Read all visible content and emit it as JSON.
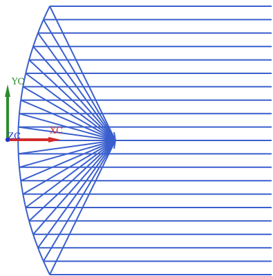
{
  "viewport": {
    "background": "#ffffff",
    "geometry_color": "#3a5fcd",
    "horizontal_line_count": 21,
    "fan_line_count": 21
  },
  "triad": {
    "x_axis": {
      "label": "XC",
      "color": "#d42a2a"
    },
    "y_axis": {
      "label": "YC",
      "color": "#2e8b2e"
    },
    "z_axis": {
      "label": "ZC",
      "color": "#2233cc"
    }
  }
}
